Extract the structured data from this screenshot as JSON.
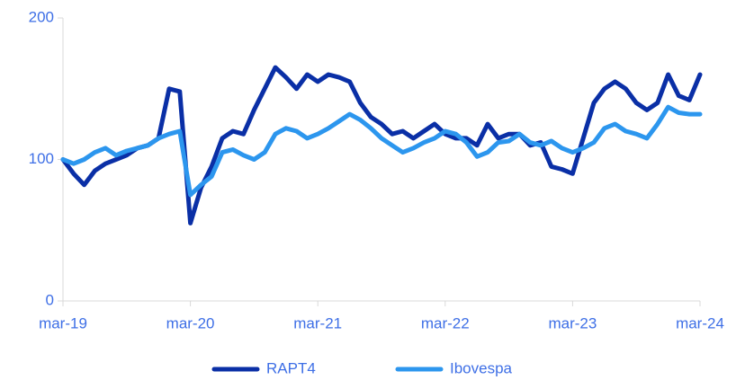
{
  "chart_data": {
    "type": "line",
    "x": [
      "2019-03",
      "2019-04",
      "2019-05",
      "2019-06",
      "2019-07",
      "2019-08",
      "2019-09",
      "2019-10",
      "2019-11",
      "2019-12",
      "2020-01",
      "2020-02",
      "2020-03",
      "2020-04",
      "2020-05",
      "2020-06",
      "2020-07",
      "2020-08",
      "2020-09",
      "2020-10",
      "2020-11",
      "2020-12",
      "2021-01",
      "2021-02",
      "2021-03",
      "2021-04",
      "2021-05",
      "2021-06",
      "2021-07",
      "2021-08",
      "2021-09",
      "2021-10",
      "2021-11",
      "2021-12",
      "2022-01",
      "2022-02",
      "2022-03",
      "2022-04",
      "2022-05",
      "2022-06",
      "2022-07",
      "2022-08",
      "2022-09",
      "2022-10",
      "2022-11",
      "2022-12",
      "2023-01",
      "2023-02",
      "2023-03",
      "2023-04",
      "2023-05",
      "2023-06",
      "2023-07",
      "2023-08",
      "2023-09",
      "2023-10",
      "2023-11",
      "2023-12",
      "2024-01",
      "2024-02",
      "2024-03"
    ],
    "series": [
      {
        "name": "RAPT4",
        "color": "#0a2fa6",
        "values": [
          100,
          90,
          82,
          92,
          97,
          100,
          103,
          108,
          110,
          115,
          150,
          148,
          55,
          80,
          95,
          115,
          120,
          118,
          135,
          150,
          165,
          158,
          150,
          160,
          155,
          160,
          158,
          155,
          140,
          130,
          125,
          118,
          120,
          115,
          120,
          125,
          118,
          115,
          115,
          110,
          125,
          115,
          118,
          118,
          110,
          112,
          95,
          93,
          90,
          115,
          140,
          150,
          155,
          150,
          140,
          135,
          140,
          160,
          145,
          142,
          160
        ]
      },
      {
        "name": "Ibovespa",
        "color": "#2c96ee",
        "values": [
          100,
          97,
          100,
          105,
          108,
          103,
          106,
          108,
          110,
          115,
          118,
          120,
          75,
          82,
          88,
          105,
          107,
          103,
          100,
          105,
          118,
          122,
          120,
          115,
          118,
          122,
          127,
          132,
          128,
          122,
          115,
          110,
          105,
          108,
          112,
          115,
          120,
          118,
          112,
          102,
          105,
          112,
          113,
          118,
          112,
          110,
          113,
          108,
          105,
          108,
          112,
          122,
          125,
          120,
          118,
          115,
          125,
          137,
          133,
          132,
          132
        ]
      }
    ],
    "xticks": [
      {
        "value": "2019-03",
        "label": "mar-19"
      },
      {
        "value": "2020-03",
        "label": "mar-20"
      },
      {
        "value": "2021-03",
        "label": "mar-21"
      },
      {
        "value": "2022-03",
        "label": "mar-22"
      },
      {
        "value": "2023-03",
        "label": "mar-23"
      },
      {
        "value": "2024-03",
        "label": "mar-24"
      }
    ],
    "xlim": [
      "2019-03",
      "2024-03"
    ],
    "ylim": [
      0,
      200
    ],
    "yticks": [
      0,
      100,
      200
    ]
  }
}
